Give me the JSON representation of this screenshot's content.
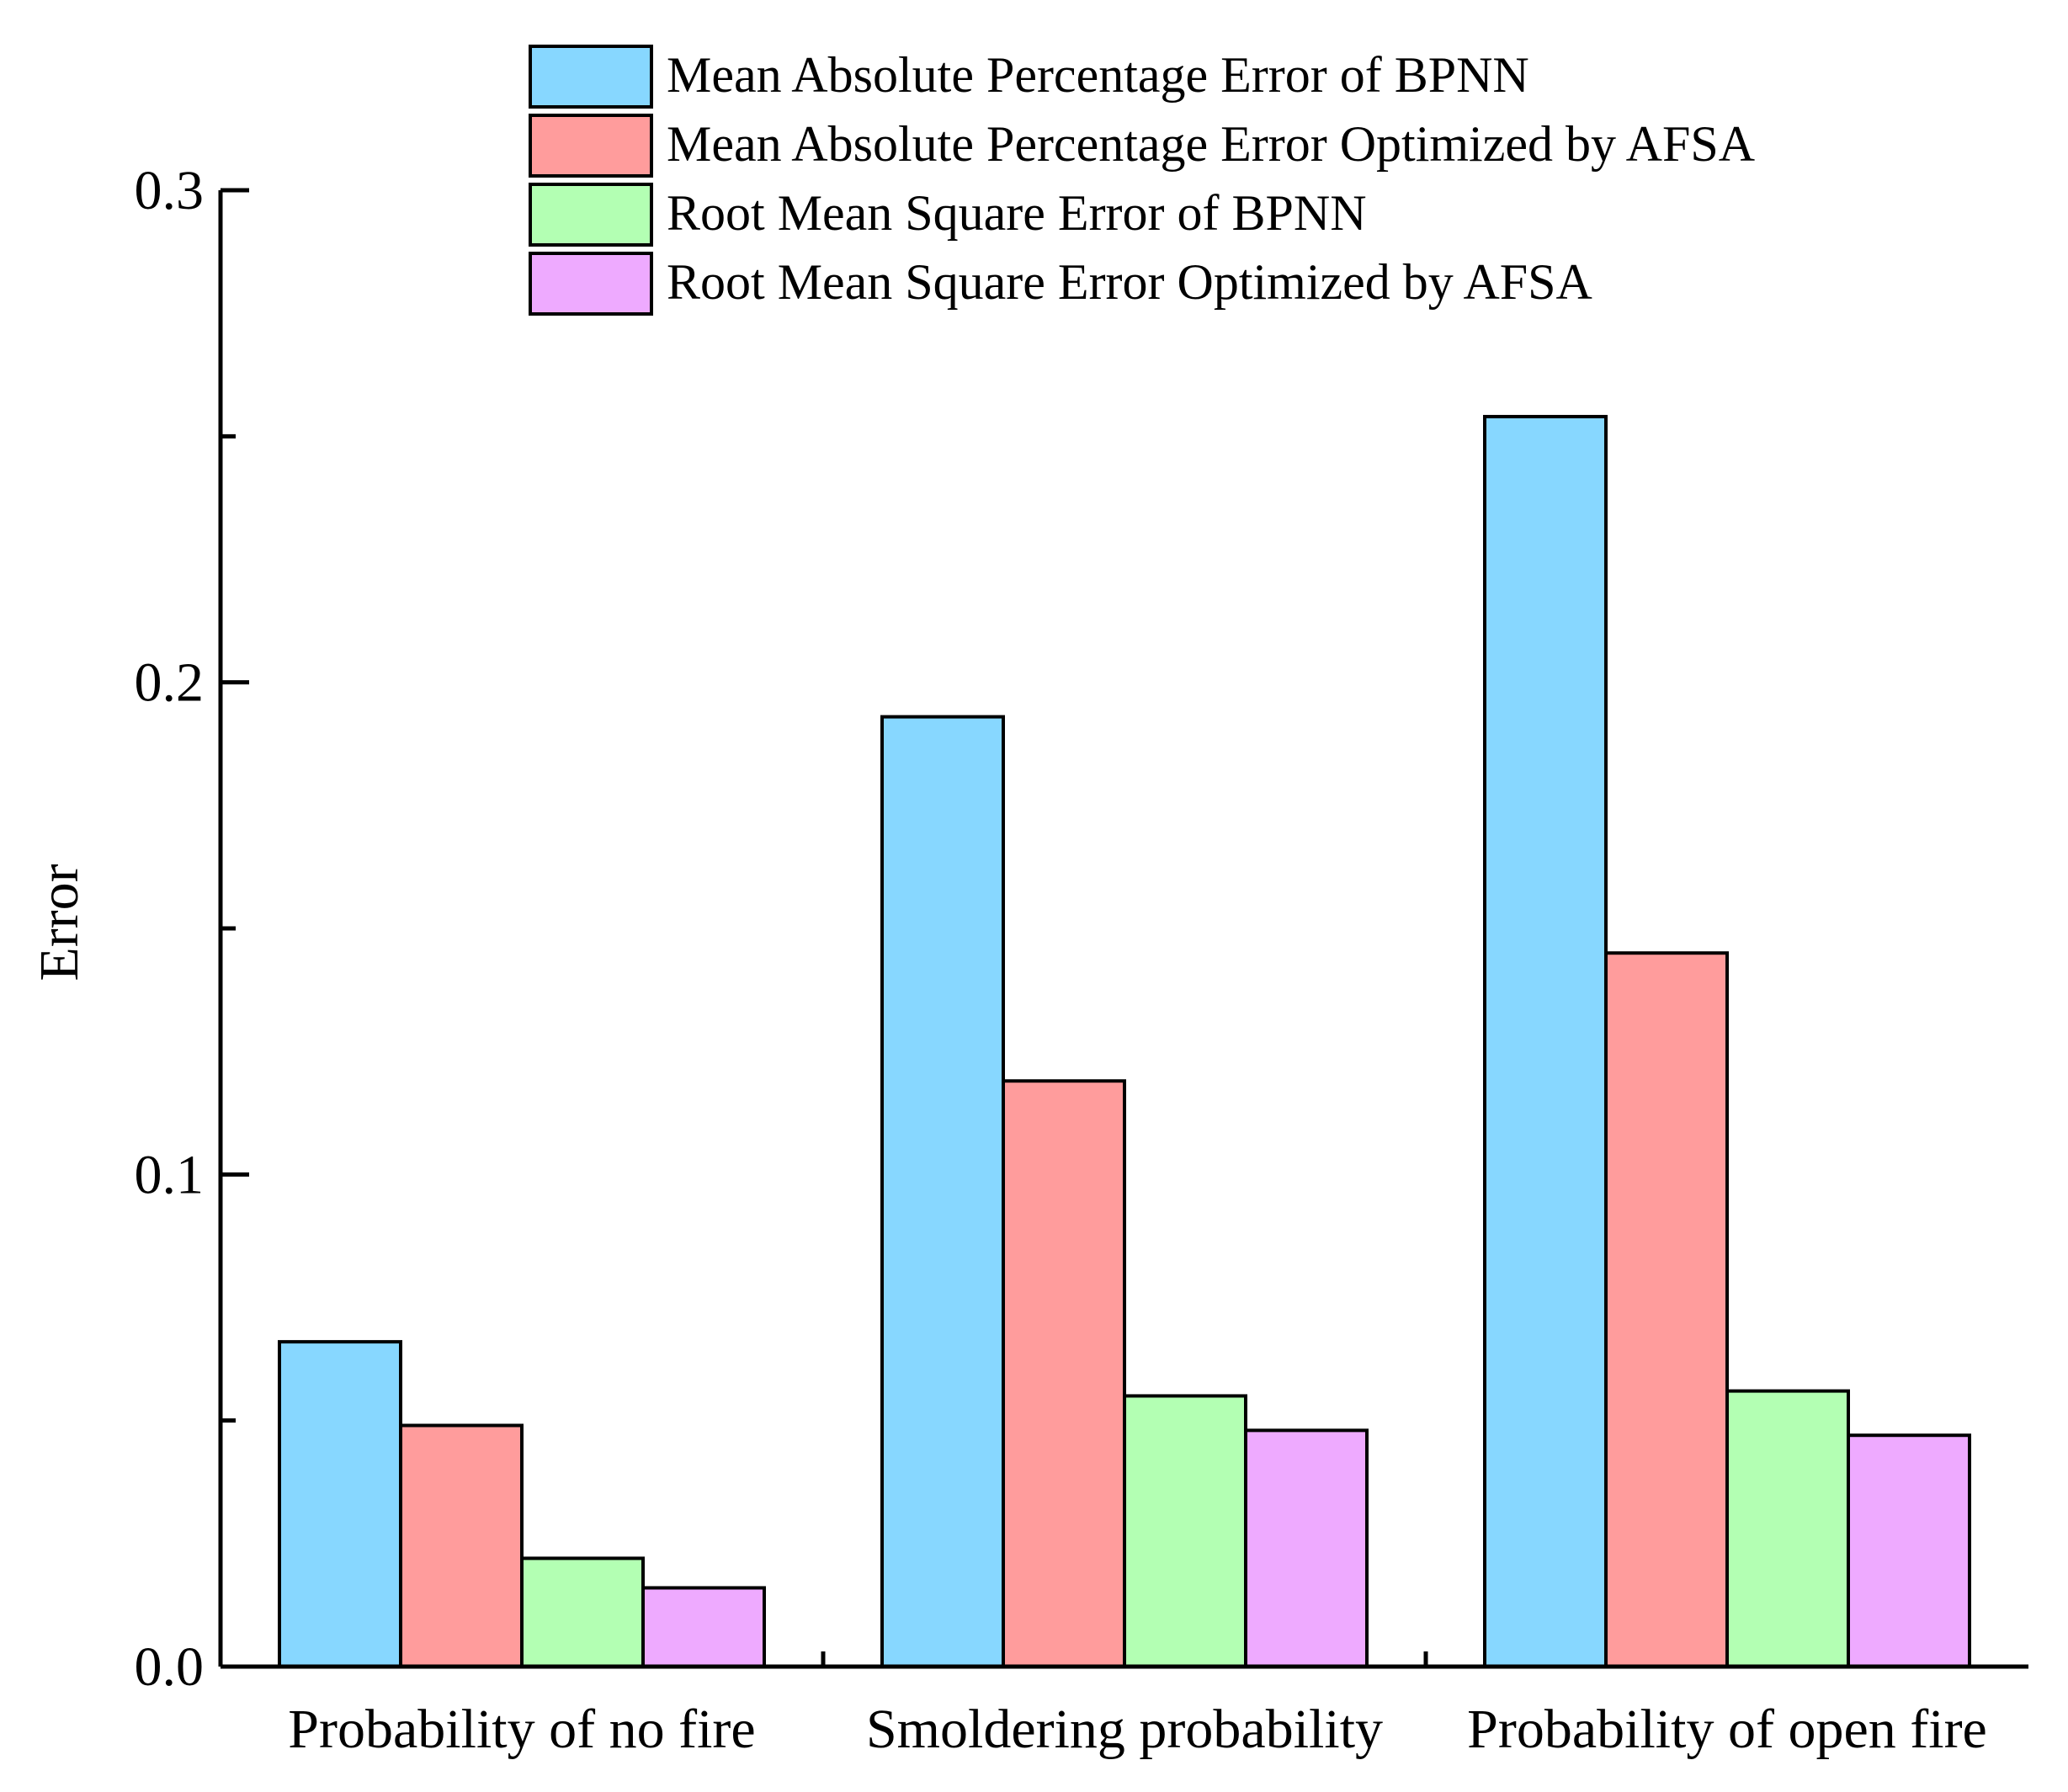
{
  "chart_data": {
    "type": "bar",
    "title": "",
    "xlabel": "",
    "ylabel": "Error",
    "ylim": [
      0,
      0.3
    ],
    "yticks": [
      "0.0",
      "0.1",
      "0.2",
      "0.3"
    ],
    "minor_yticks": [
      0.05,
      0.15,
      0.25
    ],
    "categories": [
      "Probability of no fire",
      "Smoldering probability",
      "Probability of open fire"
    ],
    "series": [
      {
        "name": "Mean Absolute Percentage Error of BPNN",
        "color": "#87d7ff",
        "values": [
          0.066,
          0.193,
          0.254
        ]
      },
      {
        "name": "Mean Absolute Percentage Error Optimized by AFSA",
        "color": "#ff9c9c",
        "values": [
          0.049,
          0.119,
          0.145
        ]
      },
      {
        "name": "Root Mean Square Error of BPNN",
        "color": "#b3ffb3",
        "values": [
          0.022,
          0.055,
          0.056
        ]
      },
      {
        "name": "Root Mean Square Error Optimized by AFSA",
        "color": "#eeaaff",
        "values": [
          0.016,
          0.048,
          0.047
        ]
      }
    ],
    "legend_position": "top"
  }
}
